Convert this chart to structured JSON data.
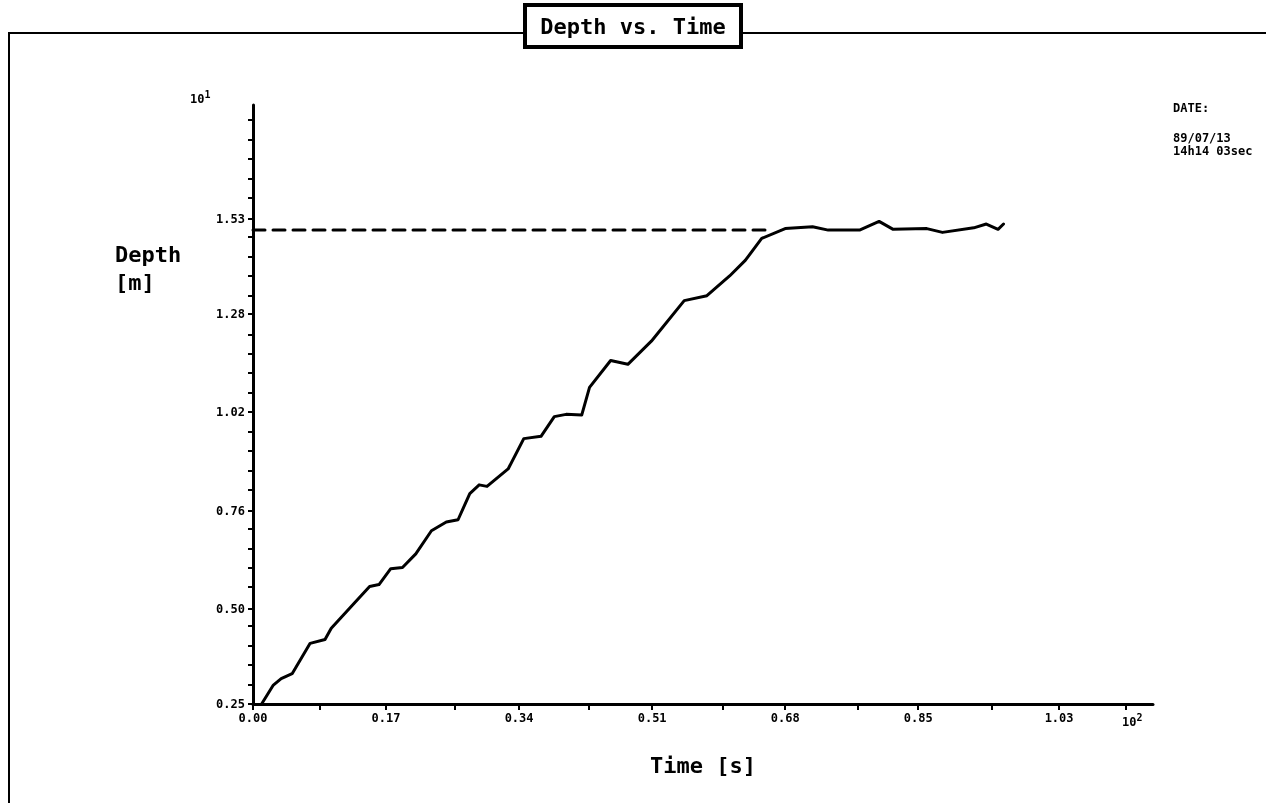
{
  "chart_data": {
    "type": "line",
    "title": "Depth vs. Time",
    "xlabel": "Time [s]",
    "ylabel": "Depth\n[m]",
    "annotations": [
      "10$^{1}$",
      "10$^{2}$",
      "DATE:",
      "89/07/13\n14h14 03sec"
    ],
    "xlim": [
      0,
      1.15
    ],
    "xticks": [
      {
        "value": 0,
        "label": "0.00"
      },
      {
        "value": 0.0858,
        "label": null
      },
      {
        "value": 0.17,
        "label": "0.17"
      },
      {
        "value": 0.2575,
        "label": null
      },
      {
        "value": 0.34,
        "label": "0.34"
      },
      {
        "value": 0.4292,
        "label": null
      },
      {
        "value": 0.51,
        "label": "0.51"
      },
      {
        "value": 0.6008,
        "label": null
      },
      {
        "value": 0.68,
        "label": "0.68"
      },
      {
        "value": 0.7725,
        "label": null
      },
      {
        "value": 0.85,
        "label": "0.85"
      },
      {
        "value": 0.9442,
        "label": null
      },
      {
        "value": 1.03,
        "label": "1.03"
      },
      {
        "value": 1.1158,
        "label": null
      }
    ],
    "ylim": [
      0.25,
      1.83
    ],
    "yticks": [
      {
        "value": 0.25,
        "label": "0.25"
      },
      {
        "value": 0.3013,
        "label": null
      },
      {
        "value": 0.3527,
        "label": null
      },
      {
        "value": 0.404,
        "label": null
      },
      {
        "value": 0.4553,
        "label": null
      },
      {
        "value": 0.5,
        "label": "0.50"
      },
      {
        "value": 0.558,
        "label": null
      },
      {
        "value": 0.6093,
        "label": null
      },
      {
        "value": 0.6607,
        "label": null
      },
      {
        "value": 0.712,
        "label": null
      },
      {
        "value": 0.76,
        "label": "0.76"
      },
      {
        "value": 0.8147,
        "label": null
      },
      {
        "value": 0.866,
        "label": null
      },
      {
        "value": 0.9173,
        "label": null
      },
      {
        "value": 0.9687,
        "label": null
      },
      {
        "value": 1.02,
        "label": "1.02"
      },
      {
        "value": 1.0713,
        "label": null
      },
      {
        "value": 1.1227,
        "label": null
      },
      {
        "value": 1.174,
        "label": null
      },
      {
        "value": 1.2253,
        "label": null
      },
      {
        "value": 1.28,
        "label": "1.28"
      },
      {
        "value": 1.328,
        "label": null
      },
      {
        "value": 1.3793,
        "label": null
      },
      {
        "value": 1.4307,
        "label": null
      },
      {
        "value": 1.482,
        "label": null
      },
      {
        "value": 1.53,
        "label": "1.53"
      },
      {
        "value": 1.5847,
        "label": null
      },
      {
        "value": 1.636,
        "label": null
      },
      {
        "value": 1.6873,
        "label": null
      },
      {
        "value": 1.7387,
        "label": null
      },
      {
        "value": 1.79,
        "label": null
      }
    ],
    "grid": false,
    "marker": "none",
    "series": [
      {
        "color": "#000000",
        "line_style": "solid",
        "x": [
          0.011,
          0.026,
          0.036,
          0.05,
          0.073,
          0.092,
          0.1,
          0.129,
          0.149,
          0.161,
          0.176,
          0.191,
          0.208,
          0.228,
          0.247,
          0.262,
          0.277,
          0.289,
          0.299,
          0.326,
          0.346,
          0.368,
          0.385,
          0.4,
          0.42,
          0.43,
          0.457,
          0.479,
          0.509,
          0.551,
          0.58,
          0.609,
          0.629,
          0.65,
          0.68,
          0.715,
          0.735,
          0.775,
          0.8,
          0.818,
          0.861,
          0.881,
          0.921,
          0.937,
          0.952,
          0.959
        ],
        "values": [
          0.25,
          0.3,
          0.317,
          0.33,
          0.41,
          0.42,
          0.45,
          0.515,
          0.56,
          0.565,
          0.607,
          0.61,
          0.646,
          0.707,
          0.73,
          0.736,
          0.805,
          0.828,
          0.824,
          0.87,
          0.95,
          0.956,
          1.008,
          1.014,
          1.012,
          1.085,
          1.156,
          1.146,
          1.207,
          1.314,
          1.327,
          1.379,
          1.42,
          1.478,
          1.504,
          1.509,
          1.5,
          1.5,
          1.523,
          1.502,
          1.504,
          1.494,
          1.506,
          1.516,
          1.502,
          1.516
        ]
      },
      {
        "color": "#000000",
        "line_style": "dashed",
        "x": [
          0,
          0.66
        ],
        "values": [
          1.5,
          1.5
        ]
      }
    ]
  }
}
